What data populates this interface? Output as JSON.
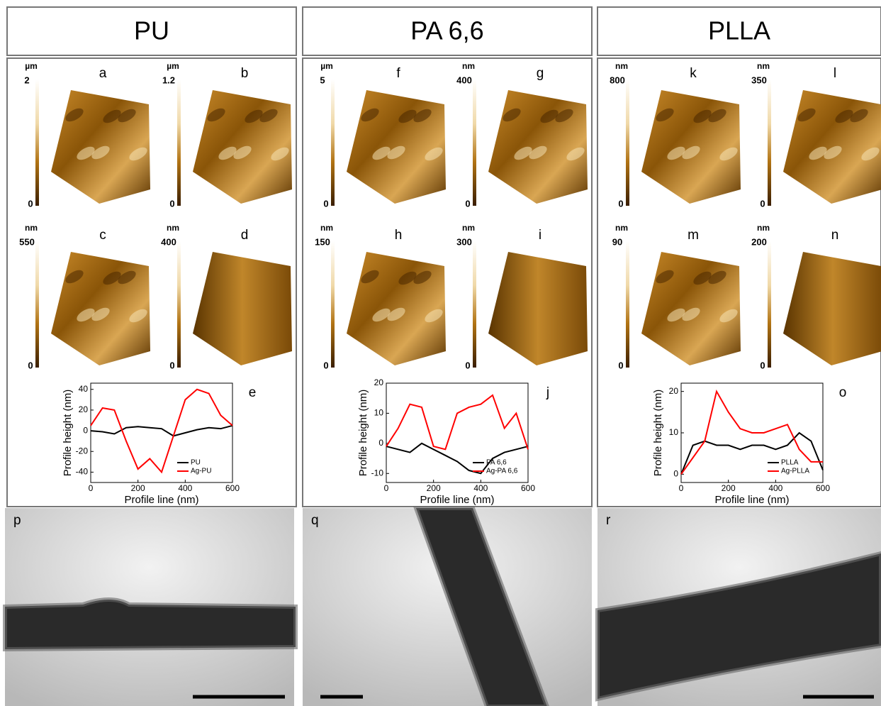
{
  "columns": [
    {
      "header": "PU",
      "afm": [
        {
          "letter": "a",
          "unit": "µm",
          "max": "2",
          "min": "0"
        },
        {
          "letter": "b",
          "unit": "µm",
          "max": "1.2",
          "min": "0"
        },
        {
          "letter": "c",
          "unit": "nm",
          "max": "550",
          "min": "0"
        },
        {
          "letter": "d",
          "unit": "nm",
          "max": "400",
          "min": "0"
        }
      ],
      "chart_data": {
        "type": "line",
        "letter": "e",
        "xlabel": "Profile line (nm)",
        "ylabel": "Profile height (nm)",
        "x": [
          0,
          50,
          100,
          150,
          200,
          250,
          300,
          350,
          400,
          450,
          500,
          550,
          600
        ],
        "xlim": [
          0,
          600
        ],
        "xticks": [
          0,
          200,
          400,
          600
        ],
        "ylim": [
          -50,
          46
        ],
        "yticks": [
          -40,
          -20,
          0,
          20,
          40
        ],
        "series": [
          {
            "name": "PU",
            "color": "#000000",
            "values": [
              0,
              -1,
              -3,
              3,
              4,
              3,
              2,
              -5,
              -2,
              1,
              3,
              2,
              5
            ]
          },
          {
            "name": "Ag-PU",
            "color": "#ff0000",
            "values": [
              5,
              22,
              20,
              -10,
              -37,
              -27,
              -40,
              -5,
              30,
              40,
              36,
              15,
              5
            ]
          }
        ]
      },
      "tem": {
        "letter": "p"
      }
    },
    {
      "header": "PA 6,6",
      "afm": [
        {
          "letter": "f",
          "unit": "µm",
          "max": "5",
          "min": "0"
        },
        {
          "letter": "g",
          "unit": "nm",
          "max": "400",
          "min": "0"
        },
        {
          "letter": "h",
          "unit": "nm",
          "max": "150",
          "min": "0"
        },
        {
          "letter": "i",
          "unit": "nm",
          "max": "300",
          "min": "0"
        }
      ],
      "chart_data": {
        "type": "line",
        "letter": "j",
        "xlabel": "Profile line (nm)",
        "ylabel": "Profile height (nm)",
        "x": [
          0,
          50,
          100,
          150,
          200,
          250,
          300,
          350,
          400,
          450,
          500,
          550,
          600
        ],
        "xlim": [
          0,
          600
        ],
        "xticks": [
          0,
          200,
          400,
          600
        ],
        "ylim": [
          -13,
          20
        ],
        "yticks": [
          -10,
          0,
          10,
          20
        ],
        "series": [
          {
            "name": "PA 6,6",
            "color": "#000000",
            "values": [
              -1,
              -2,
              -3,
              0,
              -2,
              -4,
              -6,
              -9,
              -10,
              -5,
              -3,
              -2,
              -1
            ]
          },
          {
            "name": "Ag-PA 6,6",
            "color": "#ff0000",
            "values": [
              -1,
              5,
              13,
              12,
              -1,
              -2,
              10,
              12,
              13,
              16,
              5,
              10,
              -2
            ]
          }
        ]
      },
      "tem": {
        "letter": "q"
      }
    },
    {
      "header": "PLLA",
      "afm": [
        {
          "letter": "k",
          "unit": "nm",
          "max": "800",
          "min": "0"
        },
        {
          "letter": "l",
          "unit": "nm",
          "max": "350",
          "min": "0"
        },
        {
          "letter": "m",
          "unit": "nm",
          "max": "90",
          "min": "0"
        },
        {
          "letter": "n",
          "unit": "nm",
          "max": "200",
          "min": "0"
        }
      ],
      "chart_data": {
        "type": "line",
        "letter": "o",
        "xlabel": "Profile line (nm)",
        "ylabel": "Profile height (nm)",
        "x": [
          0,
          50,
          100,
          150,
          200,
          250,
          300,
          350,
          400,
          450,
          500,
          550,
          600
        ],
        "xlim": [
          0,
          600
        ],
        "xticks": [
          0,
          200,
          400,
          600
        ],
        "ylim": [
          -2,
          22
        ],
        "yticks": [
          0,
          10,
          20
        ],
        "series": [
          {
            "name": "PLLA",
            "color": "#000000",
            "values": [
              0,
              7,
              8,
              7,
              7,
              6,
              7,
              7,
              6,
              7,
              10,
              8,
              1
            ]
          },
          {
            "name": "Ag-PLLA",
            "color": "#ff0000",
            "values": [
              0,
              4,
              8,
              20,
              15,
              11,
              10,
              10,
              11,
              12,
              6,
              3,
              3
            ]
          }
        ]
      },
      "tem": {
        "letter": "r"
      }
    }
  ]
}
